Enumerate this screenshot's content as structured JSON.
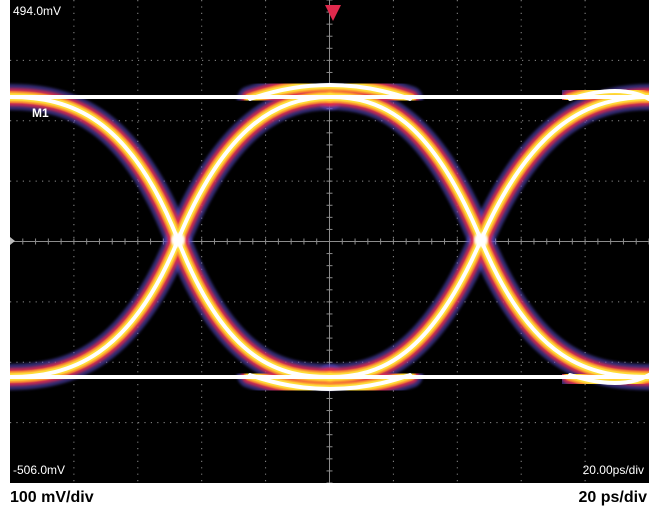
{
  "display": {
    "top_label": "494.0mV",
    "bottom_label": "-506.0mV",
    "timebase_label": "20.00ps/div",
    "channel_marker": "M1",
    "background_color": "#000000",
    "grid_color": "#8c8c8c",
    "trigger_marker_color": "#e0294c"
  },
  "captions": {
    "vertical_scale": "100 mV/div",
    "horizontal_scale": "20 ps/div"
  },
  "eye_pattern": {
    "color_ramp": [
      "#5a4fd0",
      "#e0294c",
      "#ff9a2e",
      "#ffe23a",
      "#ffffff"
    ]
  }
}
